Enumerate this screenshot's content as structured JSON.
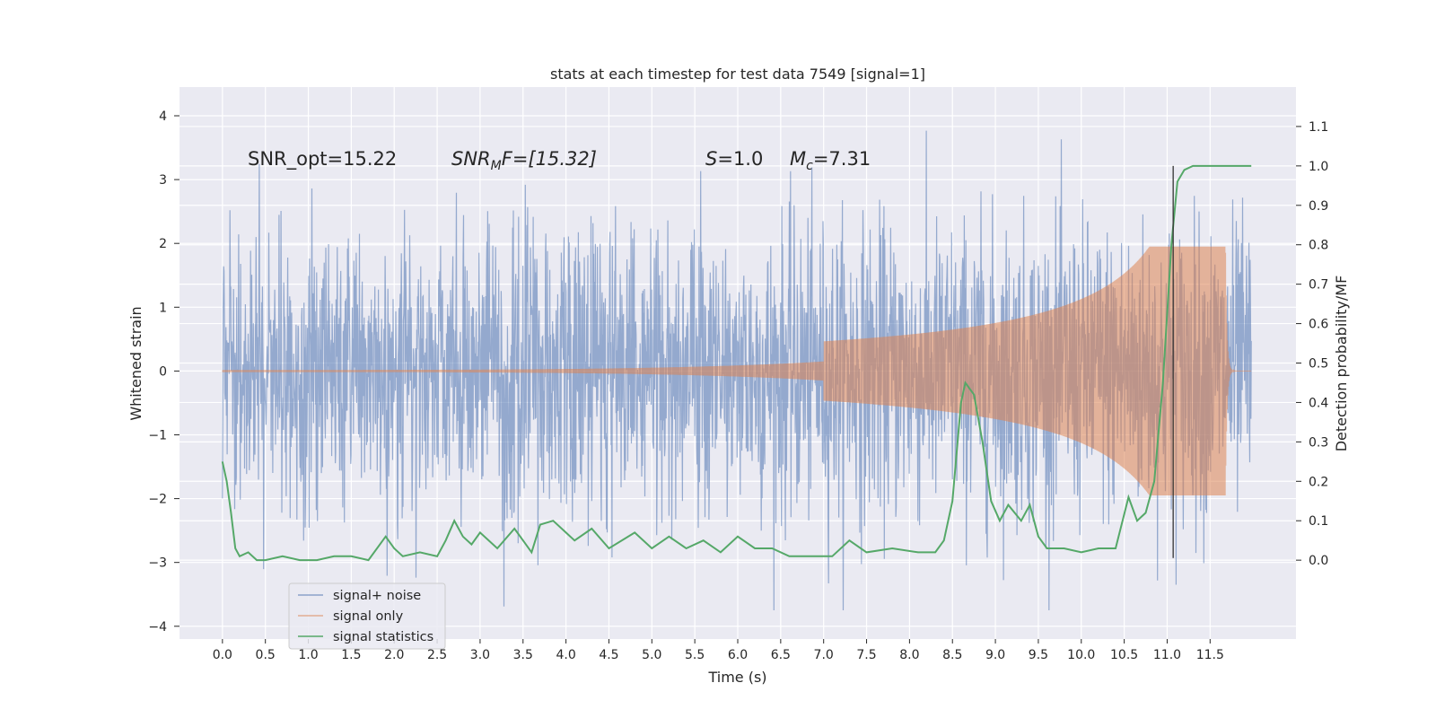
{
  "chart_data": {
    "type": "line",
    "title": "stats at each timestep for test data 7549 [signal=1]",
    "xlabel": "Time (s)",
    "ylabel": "Whitened strain",
    "y2label": "Detection probability/MF",
    "xlim": [
      -0.5,
      12.5
    ],
    "ylim": [
      -4.2,
      4.45
    ],
    "y2lim": [
      -0.2,
      1.2
    ],
    "x_ticks": [
      0.0,
      0.5,
      1.0,
      1.5,
      2.0,
      2.5,
      3.0,
      3.5,
      4.0,
      4.5,
      5.0,
      5.5,
      6.0,
      6.5,
      7.0,
      7.5,
      8.0,
      8.5,
      9.0,
      9.5,
      10.0,
      10.5,
      11.0,
      11.5
    ],
    "x_tick_labels": [
      "0.0",
      "0.5",
      "1.0",
      "1.5",
      "2.0",
      "2.5",
      "3.0",
      "3.5",
      "4.0",
      "4.5",
      "5.0",
      "5.5",
      "6.0",
      "6.5",
      "7.0",
      "7.5",
      "8.0",
      "8.5",
      "9.0",
      "9.5",
      "10.0",
      "10.5",
      "11.0",
      "11.5"
    ],
    "y_ticks": [
      4,
      3,
      2,
      1,
      0,
      -1,
      -2,
      -3,
      -4
    ],
    "y_tick_labels": [
      "4",
      "3",
      "2",
      "1",
      "0",
      "−1",
      "−2",
      "−3",
      "−4"
    ],
    "y2_ticks": [
      1.1,
      1.0,
      0.9,
      0.8,
      0.7,
      0.6,
      0.5,
      0.4,
      0.3,
      0.2,
      0.1,
      0.0
    ],
    "y2_tick_labels": [
      "1.1",
      "1.0",
      "0.9",
      "0.8",
      "0.7",
      "0.6",
      "0.5",
      "0.4",
      "0.3",
      "0.2",
      "0.1",
      "0.0"
    ],
    "grid": true,
    "legend_position": "bottom-left",
    "annotations": {
      "snr_opt": "SNR_opt=15.22",
      "snr_mf_name": "SNR",
      "snr_mf_sub": "M",
      "snr_mf_rest": "F=[15.32]",
      "s_name": "S",
      "s_rest": "=1.0",
      "mc_name": "M",
      "mc_sub": "c",
      "mc_rest": "=7.31"
    },
    "marker_line_x": 11.07,
    "series": [
      {
        "name": "signal+ noise",
        "color": "#4c72b0",
        "description": "dense whitened strain time series, roughly between -3.7 and 4.1",
        "x_range": [
          0.0,
          11.98
        ]
      },
      {
        "name": "signal only",
        "color": "#dd8452",
        "description": "chirp waveform, amplitude growing toward merger near 11.68 s",
        "x_range": [
          0.0,
          11.98
        ]
      },
      {
        "name": "signal statistics",
        "color": "#55a868",
        "axis": "right",
        "x": [
          0.0,
          0.05,
          0.1,
          0.15,
          0.2,
          0.3,
          0.4,
          0.5,
          0.7,
          0.9,
          1.1,
          1.3,
          1.5,
          1.7,
          1.9,
          2.0,
          2.1,
          2.3,
          2.5,
          2.6,
          2.7,
          2.8,
          2.9,
          3.0,
          3.2,
          3.4,
          3.5,
          3.6,
          3.7,
          3.85,
          4.0,
          4.1,
          4.3,
          4.5,
          4.8,
          5.0,
          5.2,
          5.4,
          5.6,
          5.8,
          6.0,
          6.2,
          6.4,
          6.6,
          6.9,
          7.1,
          7.3,
          7.5,
          7.8,
          8.1,
          8.3,
          8.4,
          8.5,
          8.6,
          8.65,
          8.75,
          8.85,
          8.95,
          9.05,
          9.15,
          9.3,
          9.4,
          9.5,
          9.6,
          9.8,
          10.0,
          10.2,
          10.4,
          10.55,
          10.65,
          10.75,
          10.85,
          10.95,
          11.05,
          11.12,
          11.2,
          11.3,
          11.5,
          11.8,
          11.98
        ],
        "y": [
          0.25,
          0.2,
          0.12,
          0.03,
          0.01,
          0.02,
          0.0,
          0.0,
          0.01,
          0.0,
          0.0,
          0.01,
          0.01,
          0.0,
          0.06,
          0.03,
          0.01,
          0.02,
          0.01,
          0.05,
          0.1,
          0.06,
          0.04,
          0.07,
          0.03,
          0.08,
          0.05,
          0.02,
          0.09,
          0.1,
          0.07,
          0.05,
          0.08,
          0.03,
          0.07,
          0.03,
          0.06,
          0.03,
          0.05,
          0.02,
          0.06,
          0.03,
          0.03,
          0.01,
          0.01,
          0.01,
          0.05,
          0.02,
          0.03,
          0.02,
          0.02,
          0.05,
          0.15,
          0.4,
          0.45,
          0.42,
          0.3,
          0.15,
          0.1,
          0.14,
          0.1,
          0.14,
          0.06,
          0.03,
          0.03,
          0.02,
          0.03,
          0.03,
          0.16,
          0.1,
          0.12,
          0.2,
          0.45,
          0.8,
          0.96,
          0.99,
          1.0,
          1.0,
          1.0,
          1.0
        ]
      }
    ]
  }
}
